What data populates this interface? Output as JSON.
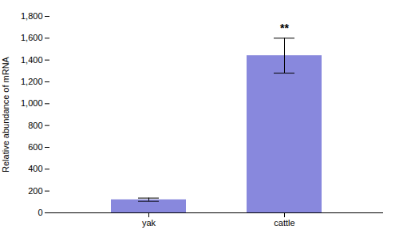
{
  "chart_data": {
    "type": "bar",
    "categories": [
      "yak",
      "cattle"
    ],
    "values": [
      120,
      1440
    ],
    "errors": [
      15,
      160
    ],
    "color": "#8888dd",
    "ylabel": "Relative abundance of mRNA",
    "ylim": [
      0,
      1800
    ],
    "yticks": [
      0,
      200,
      400,
      600,
      800,
      1000,
      1200,
      1400,
      1600,
      1800
    ],
    "grid": false,
    "annotations": [
      {
        "text": "**",
        "category": "cattle"
      }
    ]
  }
}
